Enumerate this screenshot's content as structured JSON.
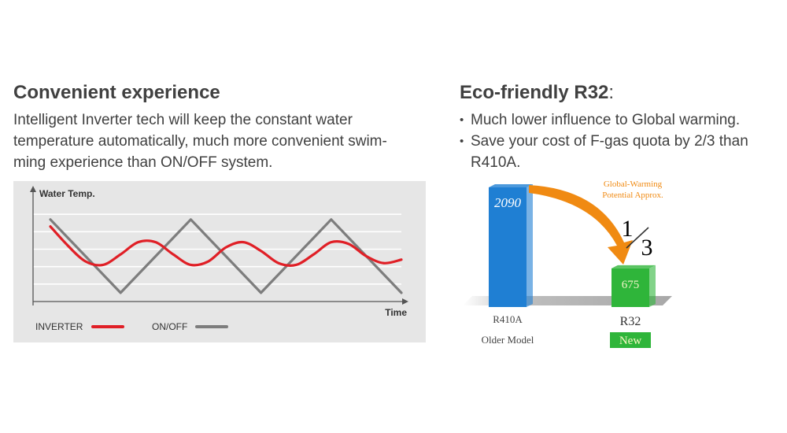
{
  "left": {
    "heading": "Convenient experience",
    "paragraph_lines": [
      "Intelligent Inverter tech will keep the constant water",
      "temperature automatically, much more convenient swim-",
      "ming experience than ON/OFF system."
    ]
  },
  "right": {
    "heading": "Eco-friendly R32",
    "heading_suffix": ":",
    "bullets": [
      {
        "lines": [
          "Much lower influence to Global warming."
        ]
      },
      {
        "lines": [
          "Save your cost of F-gas quota by 2/3 than",
          "R410A."
        ]
      }
    ]
  },
  "chart_data": [
    {
      "type": "line",
      "ylabel": "Water Temp.",
      "xlabel": "Time",
      "background_color": "#e6e6e6",
      "grid": true,
      "legend_position": "bottom-left",
      "x": [
        0,
        0.5,
        1,
        1.5,
        2,
        2.5,
        3,
        3.5,
        4,
        4.5,
        5,
        5.5,
        6,
        6.5,
        7,
        7.5,
        8,
        8.5,
        9,
        9.5,
        10
      ],
      "series": [
        {
          "name": "INVERTER",
          "color": "#e01f26",
          "values": [
            5.3,
            4.2,
            3.3,
            3.1,
            3.7,
            4.4,
            4.4,
            3.7,
            3.1,
            3.3,
            4.1,
            4.4,
            3.9,
            3.2,
            3.1,
            3.7,
            4.4,
            4.3,
            3.6,
            3.2,
            3.4
          ]
        },
        {
          "name": "ON/OFF",
          "color": "#7d7d7d",
          "values": [
            5.7,
            4.65,
            3.6,
            2.55,
            1.5,
            2.55,
            3.6,
            4.65,
            5.7,
            4.65,
            3.6,
            2.55,
            1.5,
            2.55,
            3.6,
            4.65,
            5.7,
            4.65,
            3.6,
            2.55,
            1.5
          ]
        }
      ],
      "ylim": [
        1,
        7
      ]
    },
    {
      "type": "bar",
      "title": "Global-Warming Potential Approx.",
      "annotation": "1/3",
      "annotation_num": "1",
      "annotation_den": "3",
      "categories": [
        "R410A",
        "R32"
      ],
      "sublabels": [
        "Older Model",
        "New"
      ],
      "values": [
        2090,
        675
      ],
      "value_labels": [
        "2090",
        "675"
      ],
      "colors": [
        "#1f7fd3",
        "#2fb53a"
      ],
      "accent": "#f08a12"
    }
  ]
}
